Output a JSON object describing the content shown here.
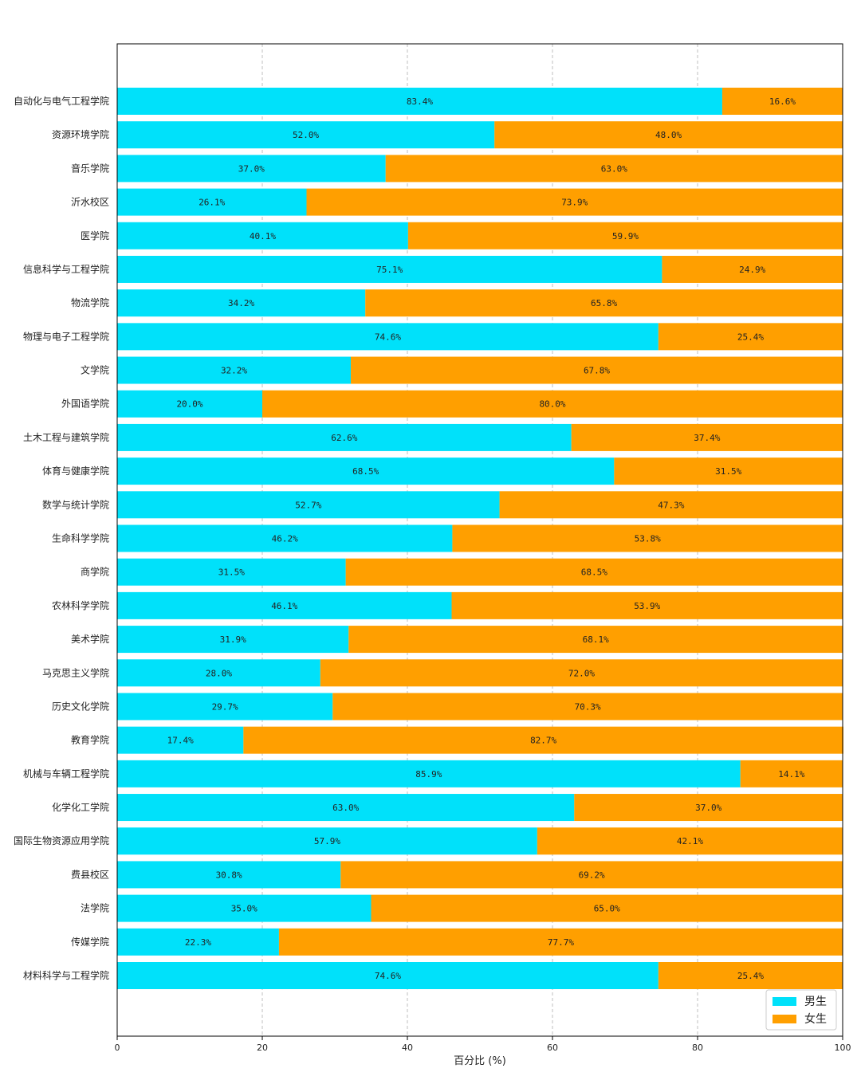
{
  "chart_data": {
    "type": "bar",
    "orientation": "horizontal",
    "stacked": true,
    "title": "",
    "xlabel": "百分比 (%)",
    "ylabel": "",
    "xlim": [
      0,
      100
    ],
    "xticks": [
      0,
      20,
      40,
      60,
      80,
      100
    ],
    "grid": "x dashed",
    "legend_position": "bottom-right",
    "categories": [
      "自动化与电气工程学院",
      "资源环境学院",
      "音乐学院",
      "沂水校区",
      "医学院",
      "信息科学与工程学院",
      "物流学院",
      "物理与电子工程学院",
      "文学院",
      "外国语学院",
      "土木工程与建筑学院",
      "体育与健康学院",
      "数学与统计学院",
      "生命科学学院",
      "商学院",
      "农林科学学院",
      "美术学院",
      "马克思主义学院",
      "历史文化学院",
      "教育学院",
      "机械与车辆工程学院",
      "化学化工学院",
      "国际生物资源应用学院",
      "费县校区",
      "法学院",
      "传媒学院",
      "材料科学与工程学院"
    ],
    "series": [
      {
        "name": "男生",
        "color": "#00E1FA",
        "values": [
          83.4,
          52.0,
          37.0,
          26.1,
          40.1,
          75.1,
          34.2,
          74.6,
          32.2,
          20.0,
          62.6,
          68.5,
          52.7,
          46.2,
          31.5,
          46.1,
          31.9,
          28.0,
          29.7,
          17.4,
          85.9,
          63.0,
          57.9,
          30.8,
          35.0,
          22.3,
          74.6
        ],
        "labels": [
          "83.4%",
          "52.0%",
          "37.0%",
          "26.1%",
          "40.1%",
          "75.1%",
          "34.2%",
          "74.6%",
          "32.2%",
          "20.0%",
          "62.6%",
          "68.5%",
          "52.7%",
          "46.2%",
          "31.5%",
          "46.1%",
          "31.9%",
          "28.0%",
          "29.7%",
          "17.4%",
          "85.9%",
          "63.0%",
          "57.9%",
          "30.8%",
          "35.0%",
          "22.3%",
          "74.6%"
        ]
      },
      {
        "name": "女生",
        "color": "#FF9F00",
        "values": [
          16.6,
          48.0,
          63.0,
          73.9,
          59.9,
          24.9,
          65.8,
          25.4,
          67.8,
          80.0,
          37.4,
          31.5,
          47.3,
          53.8,
          68.5,
          53.9,
          68.1,
          72.0,
          70.3,
          82.7,
          14.1,
          37.0,
          42.1,
          69.2,
          65.0,
          77.7,
          25.4
        ],
        "labels": [
          "16.6%",
          "48.0%",
          "63.0%",
          "73.9%",
          "59.9%",
          "24.9%",
          "65.8%",
          "25.4%",
          "67.8%",
          "80.0%",
          "37.4%",
          "31.5%",
          "47.3%",
          "53.8%",
          "68.5%",
          "53.9%",
          "68.1%",
          "72.0%",
          "70.3%",
          "82.7%",
          "14.1%",
          "37.0%",
          "42.1%",
          "69.2%",
          "65.0%",
          "77.7%",
          "25.4%"
        ]
      }
    ]
  }
}
